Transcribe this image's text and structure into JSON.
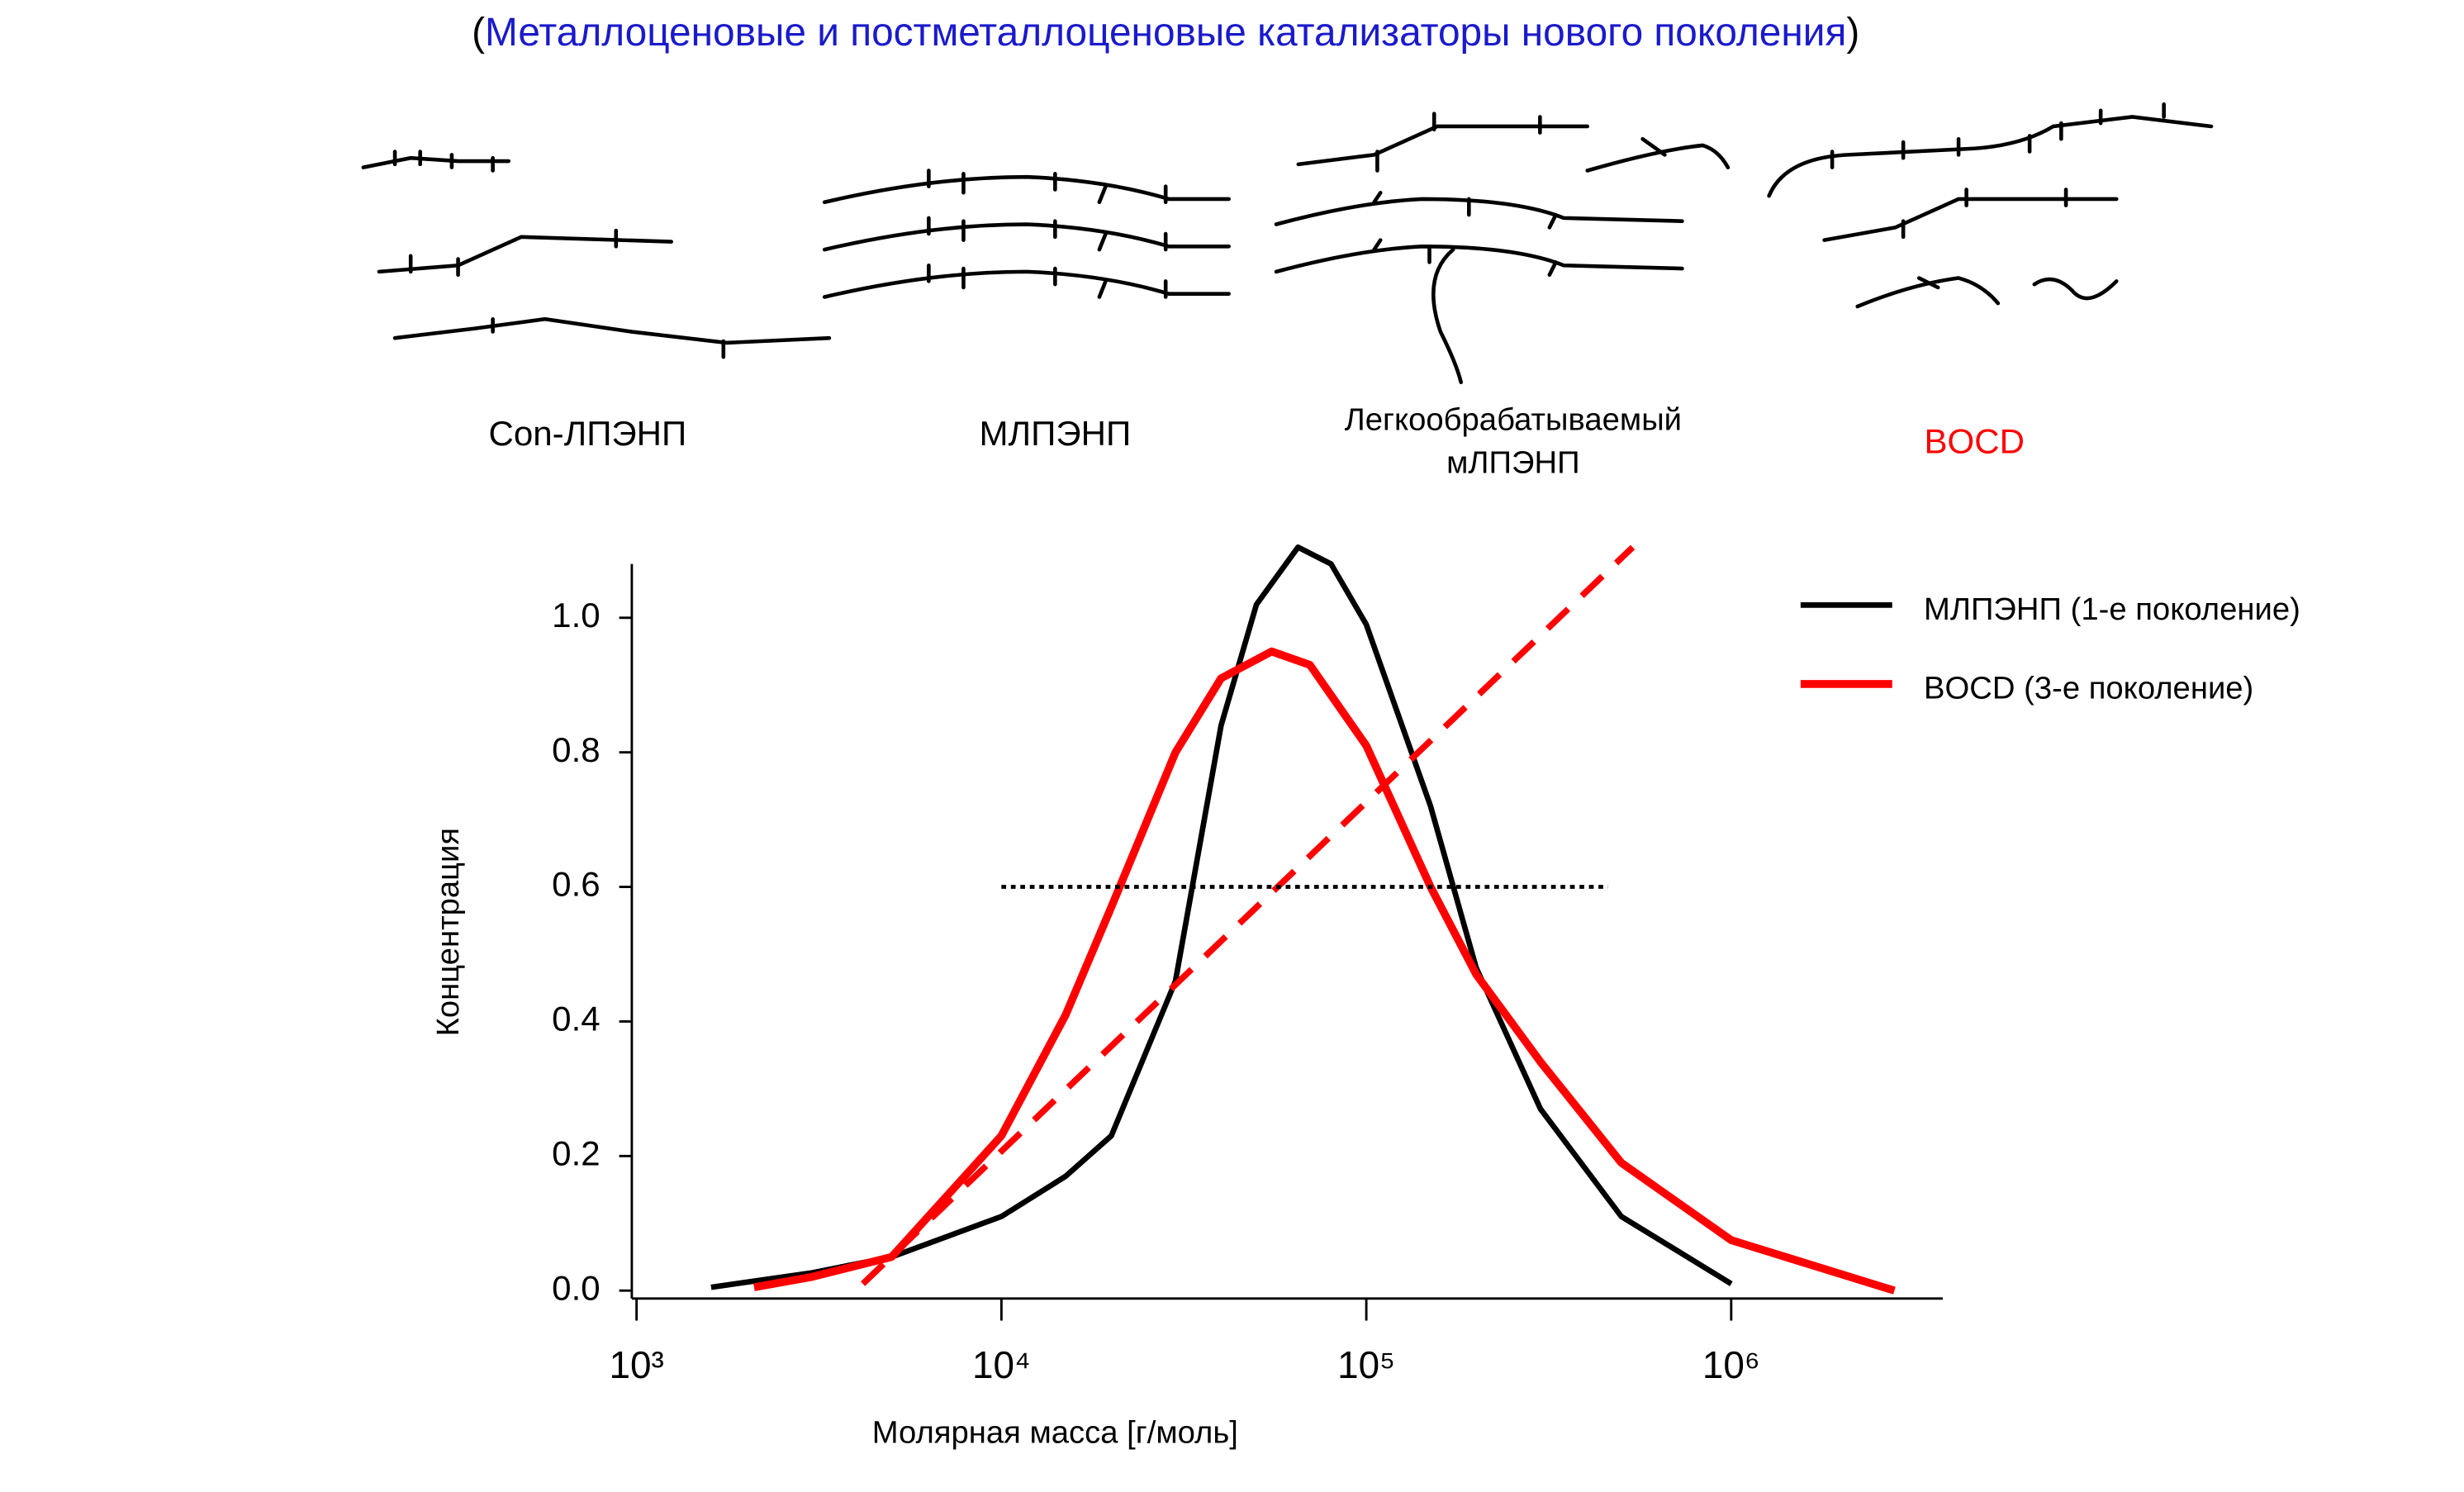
{
  "header": {
    "open": "(",
    "title": "Металлоценовые и постметаллоценовые катализаторы нового поколения",
    "close": ")"
  },
  "structures": [
    [
      "Con-ЛПЭНП"
    ],
    [
      "МЛПЭНП"
    ],
    [
      "Легкообрабатываемый",
      "мЛПЭНП"
    ],
    [
      "BOCD"
    ]
  ],
  "chart_data": {
    "type": "line",
    "xlabel": "Молярная масса [г/моль]",
    "ylabel": "Концентрация",
    "xscale": "log",
    "xlim": [
      1000,
      3800000
    ],
    "ylim": [
      0,
      1.08
    ],
    "xticks": [
      {
        "value": 1000,
        "label": "10³"
      },
      {
        "value": 10000,
        "label": "10⁴"
      },
      {
        "value": 100000,
        "label": "10⁵"
      },
      {
        "value": 1000000,
        "label": "10⁶"
      }
    ],
    "yticks": [
      {
        "value": 0,
        "label": "0.0"
      },
      0.2,
      0.4,
      0.6,
      0.8,
      {
        "value": 1,
        "label": "1.0"
      }
    ],
    "legend": "top-right",
    "series": [
      {
        "name": "МЛПЭНП (1-е поколение)",
        "color": "#000000",
        "width": 3.5,
        "x": [
          1600,
          3000,
          5000,
          10000,
          15000,
          20000,
          30000,
          40000,
          50000,
          65000,
          80000,
          100000,
          150000,
          200000,
          300000,
          500000,
          1000000
        ],
        "values": [
          0.005,
          0.026,
          0.05,
          0.11,
          0.17,
          0.23,
          0.46,
          0.84,
          1.02,
          1.105,
          1.08,
          0.99,
          0.72,
          0.48,
          0.27,
          0.11,
          0.01
        ]
      },
      {
        "name": "BOCD (3-е поколение)",
        "color": "#ff0000",
        "width": 5,
        "x": [
          2100,
          3000,
          5000,
          10000,
          15000,
          20000,
          30000,
          40000,
          55000,
          70000,
          100000,
          150000,
          200000,
          300000,
          500000,
          1000000,
          2800000
        ],
        "values": [
          0.005,
          0.02,
          0.05,
          0.23,
          0.41,
          0.57,
          0.8,
          0.91,
          0.95,
          0.93,
          0.81,
          0.6,
          0.47,
          0.34,
          0.19,
          0.075,
          0
        ]
      },
      {
        "color": "#ff0000",
        "width": 4,
        "style": "dashed",
        "x": [
          4170,
          537000
        ],
        "values": [
          0.01,
          1.105
        ]
      },
      {
        "color": "#000000",
        "width": 2.5,
        "style": "dotted",
        "x": [
          10000,
          460000
        ],
        "values": [
          0.6,
          0.6
        ]
      }
    ]
  }
}
